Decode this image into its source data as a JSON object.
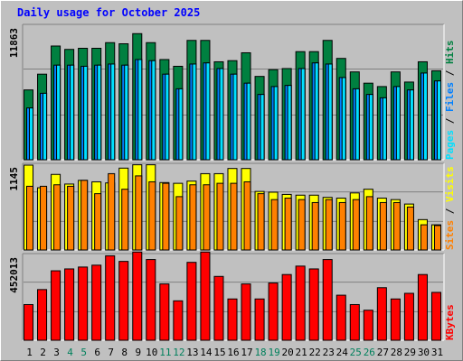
{
  "chart_data": {
    "type": "bar",
    "title": "Daily usage for October 2025",
    "categories": [
      "1",
      "2",
      "3",
      "4",
      "5",
      "6",
      "7",
      "8",
      "9",
      "10",
      "11",
      "12",
      "13",
      "14",
      "15",
      "16",
      "17",
      "18",
      "19",
      "20",
      "21",
      "22",
      "23",
      "24",
      "25",
      "26",
      "27",
      "28",
      "29",
      "30",
      "31"
    ],
    "weekend_days": [
      "4",
      "5",
      "11",
      "12",
      "18",
      "19",
      "25",
      "26"
    ],
    "panels": [
      {
        "name": "top",
        "ymax": 11863,
        "ymax_label": "11863",
        "gridlines": [
          0.33,
          0.67
        ],
        "side_labels": [
          "Pages",
          "Files",
          "Hits"
        ],
        "series": [
          {
            "name": "Hits",
            "color": "#008040",
            "values": [
              6200,
              7600,
              10100,
              9800,
              9900,
              9900,
              10400,
              10300,
              11200,
              10400,
              8900,
              8300,
              10600,
              10600,
              8700,
              8800,
              9500,
              7400,
              8000,
              8100,
              9600,
              9600,
              10600,
              9000,
              7800,
              6800,
              6500,
              7800,
              6900,
              8700,
              7900
            ]
          },
          {
            "name": "Files",
            "color": "#0080ff",
            "values": [
              4600,
              5900,
              8400,
              8400,
              8300,
              8400,
              8500,
              8400,
              8900,
              8800,
              7600,
              6300,
              8500,
              8600,
              8100,
              7600,
              6800,
              5800,
              6500,
              6600,
              8100,
              8600,
              8500,
              7300,
              6300,
              5800,
              5500,
              6500,
              6200,
              7700,
              7000
            ]
          },
          {
            "name": "Pages",
            "color": "#00e0ff",
            "values": [
              4600,
              5900,
              8400,
              8400,
              8300,
              8400,
              8500,
              8400,
              8900,
              8800,
              7600,
              6300,
              8500,
              8600,
              8100,
              7600,
              6800,
              5800,
              6500,
              6600,
              8100,
              8600,
              8500,
              7300,
              6300,
              5800,
              5500,
              6500,
              6200,
              7700,
              7000
            ]
          }
        ]
      },
      {
        "name": "middle",
        "ymax": 1145,
        "ymax_label": "1145",
        "gridlines": [
          0.33,
          0.67
        ],
        "side_labels": [
          "Sites",
          "Visits"
        ],
        "series": [
          {
            "name": "Visits",
            "color": "#ffff00",
            "values": [
              1145,
              840,
              1020,
              890,
              940,
              920,
              905,
              1105,
              1150,
              1150,
              910,
              900,
              930,
              1030,
              1030,
              1100,
              1100,
              790,
              780,
              750,
              740,
              740,
              710,
              700,
              770,
              820,
              700,
              680,
              620,
              410,
              340
            ]
          },
          {
            "name": "Sites",
            "color": "#ff8000",
            "values": [
              860,
              860,
              880,
              860,
              940,
              760,
              1030,
              820,
              1000,
              920,
              900,
              720,
              880,
              880,
              900,
              900,
              920,
              760,
              680,
              700,
              680,
              640,
              680,
              640,
              680,
              720,
              640,
              640,
              580,
              340,
              330
            ]
          }
        ]
      },
      {
        "name": "bottom",
        "ymax": 452013,
        "ymax_label": "452013",
        "gridlines": [
          0.33,
          0.67
        ],
        "side_labels": [
          "KBytes"
        ],
        "series": [
          {
            "name": "KBytes",
            "color": "#ff0000",
            "values": [
              190000,
              270000,
              370000,
              380000,
              390000,
              400000,
              450000,
              420000,
              470000,
              430000,
              300000,
              210000,
              415000,
              470000,
              340000,
              220000,
              300000,
              220000,
              305000,
              350000,
              395000,
              380000,
              430000,
              240000,
              190000,
              160000,
              280000,
              220000,
              250000,
              350000,
              255000
            ]
          }
        ]
      }
    ],
    "colors": {
      "background": "#c0c0c0",
      "title": "#0000ff",
      "axis_label": "#000000",
      "weekend_label": "#00805c",
      "label_separator": "#000000"
    }
  }
}
